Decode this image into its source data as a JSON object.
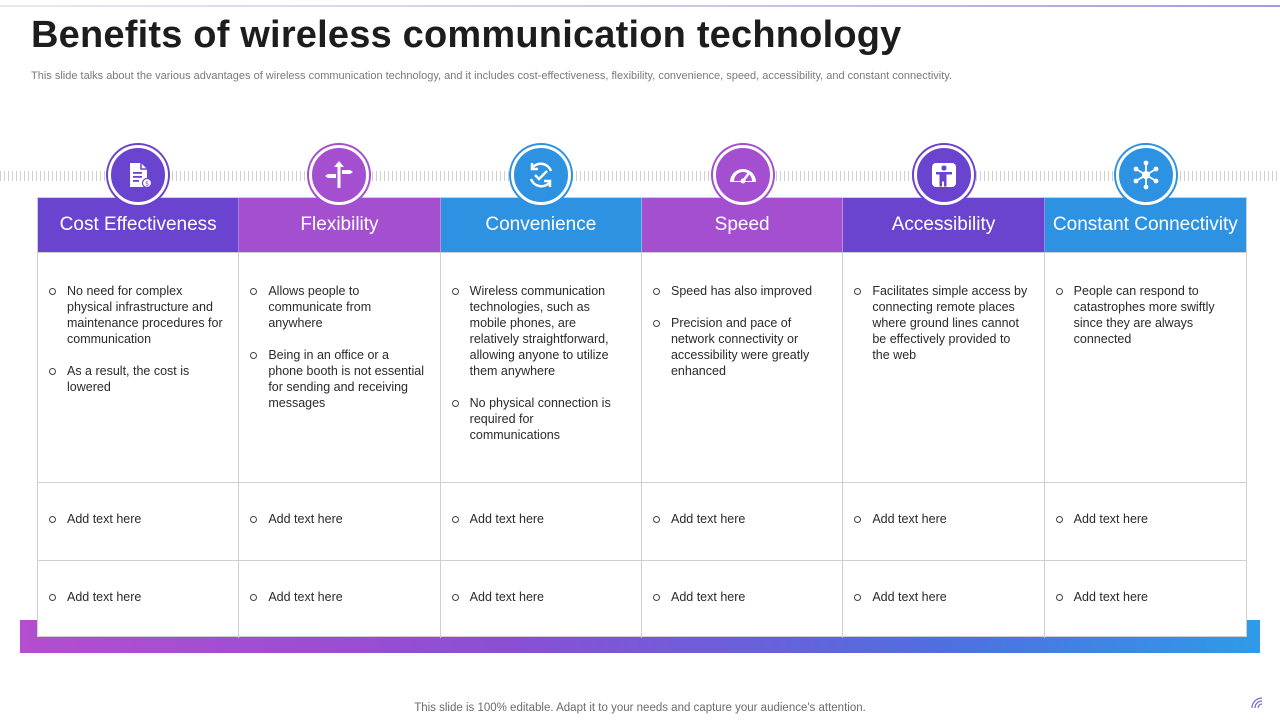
{
  "slide": {
    "title": "Benefits of wireless communication technology",
    "subtitle": "This slide talks about the various advantages of wireless communication technology, and it includes cost-effectiveness, flexibility, convenience, speed, accessibility, and constant connectivity.",
    "footer": "This slide is 100% editable. Adapt it to your needs and capture your audience's attention."
  },
  "columns": [
    {
      "heading": "Cost Effectiveness",
      "icon": "document-money-icon",
      "color": "#6a43cf",
      "bullets": [
        "No need for complex physical infrastructure and maintenance procedures for communication",
        "As a result, the cost is lowered"
      ],
      "row2": "Add text here",
      "row3": "Add text here"
    },
    {
      "heading": "Flexibility",
      "icon": "signpost-arrows-icon",
      "color": "#a44ed0",
      "bullets": [
        "Allows people to communicate from anywhere",
        "Being in an office or a phone booth is not essential for sending and receiving messages"
      ],
      "row2": "Add text here",
      "row3": "Add text here"
    },
    {
      "heading": "Convenience",
      "icon": "refresh-check-icon",
      "color": "#2e92e2",
      "bullets": [
        "Wireless communication technologies, such as mobile phones, are relatively straightforward, allowing anyone to utilize them anywhere",
        "No physical connection is required for communications"
      ],
      "row2": "Add text here",
      "row3": "Add text here"
    },
    {
      "heading": "Speed",
      "icon": "speedometer-icon",
      "color": "#a44ed0",
      "bullets": [
        "Speed has also improved",
        "Precision and pace of network connectivity or accessibility were greatly enhanced"
      ],
      "row2": "Add text here",
      "row3": "Add text here"
    },
    {
      "heading": "Accessibility",
      "icon": "accessibility-person-icon",
      "color": "#6a43cf",
      "bullets": [
        "Facilitates simple access by connecting remote places where ground lines cannot be effectively provided to the web"
      ],
      "row2": "Add text here",
      "row3": "Add text here"
    },
    {
      "heading": "Constant Connectivity",
      "icon": "network-hub-icon",
      "color": "#2e92e2",
      "bullets": [
        "People can respond to catastrophes more swiftly since they are always connected"
      ],
      "row2": "Add text here",
      "row3": "Add text here"
    }
  ]
}
